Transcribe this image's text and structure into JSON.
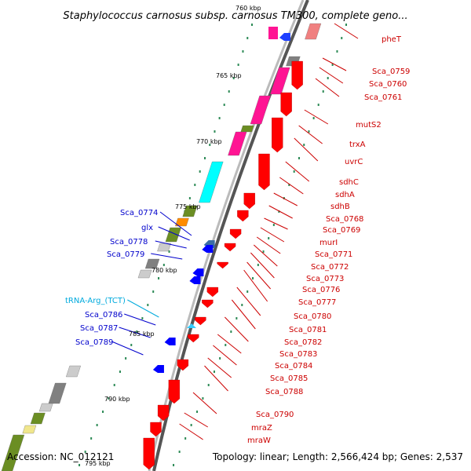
{
  "title": "Staphylococcus carnosus subsp. carnosus TM300, complete geno...",
  "footer": {
    "accession": "Accession: NC_012121",
    "summary": "Topology: linear; Length: 2,566,424 bp; Genes: 2,537"
  },
  "kbp_labels": [
    "760 kbp",
    "765 kbp",
    "770 kbp",
    "775 kbp",
    "780 kbp",
    "785 kbp",
    "790 kbp",
    "795 kbp"
  ],
  "colors": {
    "red": "#ff0000",
    "pink": "#ff1493",
    "cyan": "#00ffff",
    "olive": "#6b8e23",
    "gray": "#808080",
    "blue": "#0000ff",
    "light_blue": "#33ccff",
    "right_label": "#cc0000",
    "left_label": "#0000cc",
    "trna_label": "#00aadd"
  },
  "right_labels": [
    "pheT",
    "Sca_0759",
    "Sca_0760",
    "Sca_0761",
    "mutS2",
    "trxA",
    "uvrC",
    "sdhC",
    "sdhA",
    "sdhB",
    "Sca_0768",
    "Sca_0769",
    "murI",
    "Sca_0771",
    "Sca_0772",
    "Sca_0773",
    "Sca_0776",
    "Sca_0777",
    "Sca_0780",
    "Sca_0781",
    "Sca_0782",
    "Sca_0783",
    "Sca_0784",
    "Sca_0785",
    "Sca_0788",
    "Sca_0790",
    "mraZ",
    "mraW"
  ],
  "left_labels": [
    "Sca_0774",
    "glx",
    "Sca_0778",
    "Sca_0779",
    "tRNA-Arg_(TCT)",
    "Sca_0786",
    "Sca_0787",
    "Sca_0789"
  ]
}
